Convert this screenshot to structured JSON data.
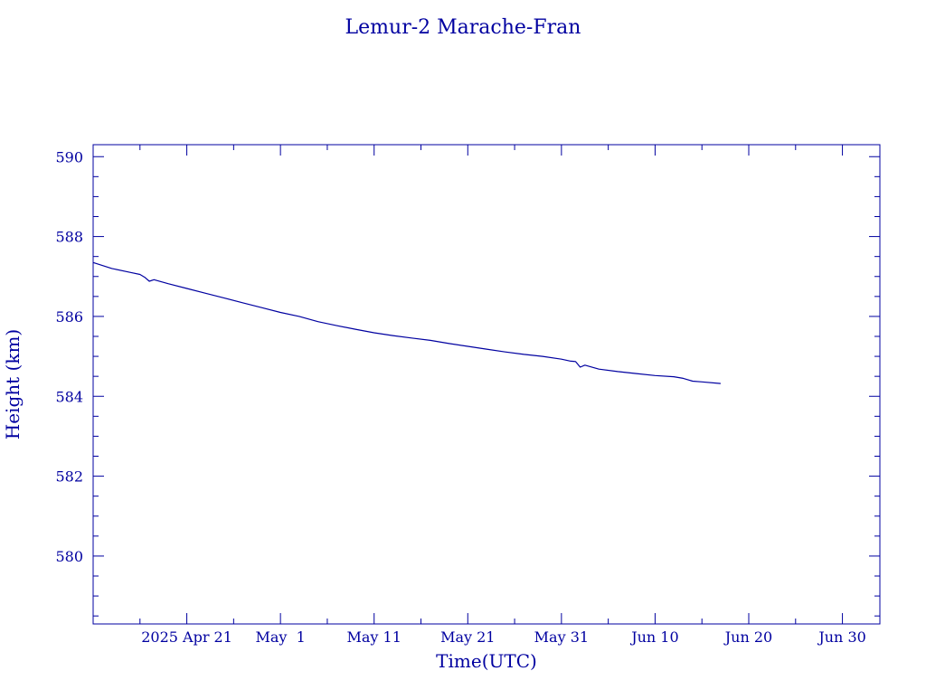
{
  "colors": {
    "ink": "#0000a0",
    "background": "#ffffff"
  },
  "chart_data": {
    "type": "line",
    "title": "Lemur-2 Marache-Fran",
    "xlabel": "Time(UTC)",
    "ylabel": "Height (km)",
    "x_axis_type": "date",
    "xlim": [
      "2025-04-11",
      "2025-07-04"
    ],
    "ylim": [
      578.3,
      590.3
    ],
    "y_ticks": [
      580,
      582,
      584,
      586,
      588,
      590
    ],
    "y_tick_labels": [
      "580",
      "582",
      "584",
      "586",
      "588",
      "590"
    ],
    "y_minor_step": 0.5,
    "x_ticks": [
      "2025-04-21",
      "2025-05-01",
      "2025-05-11",
      "2025-05-21",
      "2025-05-31",
      "2025-06-10",
      "2025-06-20",
      "2025-06-30"
    ],
    "x_tick_labels": [
      "2025 Apr 21",
      "May  1",
      "May 11",
      "May 21",
      "May 31",
      "Jun 10",
      "Jun 20",
      "Jun 30"
    ],
    "x_minor_ticks": [
      "2025-04-16",
      "2025-04-26",
      "2025-05-06",
      "2025-05-16",
      "2025-05-26",
      "2025-06-05",
      "2025-06-15",
      "2025-06-25"
    ],
    "grid": false,
    "series": [
      {
        "color": "#0000a0",
        "points": [
          [
            "2025-04-11",
            587.35
          ],
          [
            "2025-04-13",
            587.2
          ],
          [
            "2025-04-15",
            587.1
          ],
          [
            "2025-04-16",
            587.05
          ],
          [
            "2025-04-16T12:00",
            586.98
          ],
          [
            "2025-04-17",
            586.88
          ],
          [
            "2025-04-17T12:00",
            586.92
          ],
          [
            "2025-04-19",
            586.82
          ],
          [
            "2025-04-21",
            586.7
          ],
          [
            "2025-04-23",
            586.58
          ],
          [
            "2025-04-25",
            586.46
          ],
          [
            "2025-04-27",
            586.34
          ],
          [
            "2025-04-29",
            586.22
          ],
          [
            "2025-05-01",
            586.1
          ],
          [
            "2025-05-03",
            586.0
          ],
          [
            "2025-05-05",
            585.87
          ],
          [
            "2025-05-07",
            585.77
          ],
          [
            "2025-05-09",
            585.68
          ],
          [
            "2025-05-11",
            585.59
          ],
          [
            "2025-05-13",
            585.52
          ],
          [
            "2025-05-15",
            585.46
          ],
          [
            "2025-05-17",
            585.4
          ],
          [
            "2025-05-19",
            585.32
          ],
          [
            "2025-05-21",
            585.25
          ],
          [
            "2025-05-23",
            585.18
          ],
          [
            "2025-05-25",
            585.11
          ],
          [
            "2025-05-27",
            585.05
          ],
          [
            "2025-05-29",
            585.0
          ],
          [
            "2025-05-31",
            584.93
          ],
          [
            "2025-06-01",
            584.88
          ],
          [
            "2025-06-01T12:00",
            584.87
          ],
          [
            "2025-06-02",
            584.73
          ],
          [
            "2025-06-02T12:00",
            584.78
          ],
          [
            "2025-06-04",
            584.68
          ],
          [
            "2025-06-06",
            584.62
          ],
          [
            "2025-06-08",
            584.57
          ],
          [
            "2025-06-10",
            584.52
          ],
          [
            "2025-06-12",
            584.49
          ],
          [
            "2025-06-13",
            584.45
          ],
          [
            "2025-06-14",
            584.38
          ],
          [
            "2025-06-15",
            584.36
          ],
          [
            "2025-06-17",
            584.32
          ]
        ]
      }
    ]
  }
}
